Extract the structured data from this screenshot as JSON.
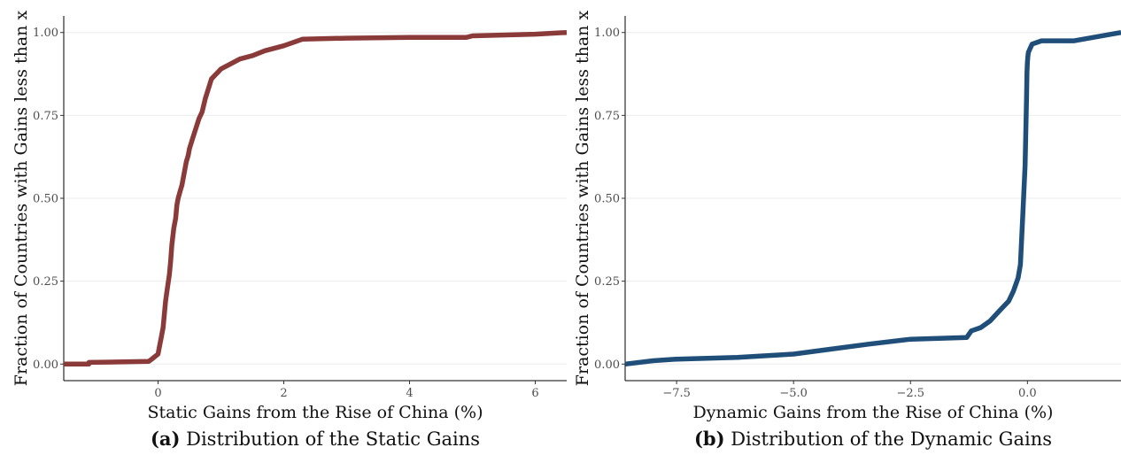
{
  "chart_data": [
    {
      "type": "line",
      "title": "",
      "xlabel": "Static Gains from the Rise of China (%)",
      "ylabel": "Fraction of Countries with Gains less than x",
      "caption_lead": "(a)",
      "caption": "Distribution of the Static Gains",
      "xlim": [
        -1.5,
        6.5
      ],
      "ylim": [
        -0.05,
        1.05
      ],
      "x_ticks": [
        0,
        2,
        4,
        6
      ],
      "x_tick_labels": [
        "0",
        "2",
        "4",
        "6"
      ],
      "y_ticks": [
        0,
        0.25,
        0.5,
        0.75,
        1
      ],
      "y_tick_labels": [
        "0.00",
        "0.25",
        "0.50",
        "0.75",
        "1.00"
      ],
      "grid": true,
      "color": "#8b3a3a",
      "series": [
        {
          "x": [
            -1.5,
            -1.1,
            -1.1,
            -0.15,
            -0.1,
            0.0,
            0.02,
            0.05,
            0.08,
            0.1,
            0.12,
            0.15,
            0.18,
            0.2,
            0.22,
            0.25,
            0.28,
            0.3,
            0.32,
            0.35,
            0.38,
            0.42,
            0.45,
            0.48,
            0.5,
            0.55,
            0.6,
            0.65,
            0.7,
            0.75,
            0.8,
            0.85,
            0.9,
            0.95,
            1.0,
            1.1,
            1.2,
            1.3,
            1.5,
            1.7,
            2.0,
            2.3,
            3.0,
            4.0,
            4.9,
            5.0,
            6.0,
            6.5
          ],
          "y": [
            0.0,
            0.0,
            0.005,
            0.008,
            0.015,
            0.03,
            0.05,
            0.08,
            0.11,
            0.15,
            0.19,
            0.23,
            0.27,
            0.31,
            0.36,
            0.41,
            0.44,
            0.48,
            0.5,
            0.52,
            0.54,
            0.58,
            0.61,
            0.63,
            0.65,
            0.68,
            0.71,
            0.74,
            0.76,
            0.8,
            0.83,
            0.86,
            0.87,
            0.88,
            0.89,
            0.9,
            0.91,
            0.92,
            0.93,
            0.945,
            0.96,
            0.98,
            0.983,
            0.985,
            0.985,
            0.99,
            0.995,
            1.0
          ]
        }
      ]
    },
    {
      "type": "line",
      "title": "",
      "xlabel": "Dynamic Gains from the Rise of China (%)",
      "ylabel": "Fraction of Countries with Gains less than x",
      "caption_lead": "(b)",
      "caption": "Distribution of the Dynamic Gains",
      "xlim": [
        -8.6,
        2.0
      ],
      "ylim": [
        -0.05,
        1.05
      ],
      "x_ticks": [
        -7.5,
        -5.0,
        -2.5,
        0.0
      ],
      "x_tick_labels": [
        "−7.5",
        "−5.0",
        "−2.5",
        "0.0"
      ],
      "y_ticks": [
        0,
        0.25,
        0.5,
        0.75,
        1
      ],
      "y_tick_labels": [
        "0.00",
        "0.25",
        "0.50",
        "0.75",
        "1.00"
      ],
      "grid": true,
      "color": "#1f4e79",
      "series": [
        {
          "x": [
            -8.6,
            -8.0,
            -7.5,
            -6.2,
            -5.0,
            -4.2,
            -3.4,
            -2.5,
            -1.3,
            -1.2,
            -1.0,
            -0.8,
            -0.6,
            -0.4,
            -0.3,
            -0.2,
            -0.15,
            -0.1,
            -0.05,
            -0.02,
            -0.01,
            0.0,
            0.01,
            0.02,
            0.05,
            0.1,
            0.2,
            0.3,
            1.0,
            1.4,
            1.8,
            2.0
          ],
          "y": [
            0.0,
            0.01,
            0.015,
            0.02,
            0.03,
            0.045,
            0.06,
            0.075,
            0.08,
            0.1,
            0.11,
            0.13,
            0.16,
            0.19,
            0.22,
            0.26,
            0.3,
            0.45,
            0.6,
            0.8,
            0.88,
            0.91,
            0.93,
            0.94,
            0.95,
            0.965,
            0.97,
            0.975,
            0.975,
            0.985,
            0.995,
            1.0
          ]
        }
      ]
    }
  ]
}
